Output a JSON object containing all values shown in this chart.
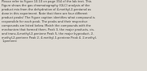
{
  "bg_color": "#dedad3",
  "text_color": "#3e3c38",
  "font_size": 2.6,
  "fig_width": 1.81,
  "fig_height": 0.88,
  "dpi": 100,
  "linespacing": 1.3,
  "lines": [
    "Please refer to Figure 10.10 on page 354 of the lab text. This",
    "Figure shows the gas chromatography (GLC) analysis of the",
    "product mix from the dehydration of 4-methyl-2-pentanol as",
    "done in this experiment. Note that there are four different",
    "product peaks! The Figure caption identifies what compound is",
    "responsible for each peak. The peaks and their respective",
    "compounds are listed below. Match the compounds with the",
    "mechanism that formed them. Peak 3, the major products, cis-",
    "and trans-4-methyl-2-pentene Peak 5, the major byproduct, 2-",
    "methyl-2-pentene Peak 2, 4-methyl-1-pentene Peak 4, 2-methyl-",
    "1-pentene"
  ]
}
